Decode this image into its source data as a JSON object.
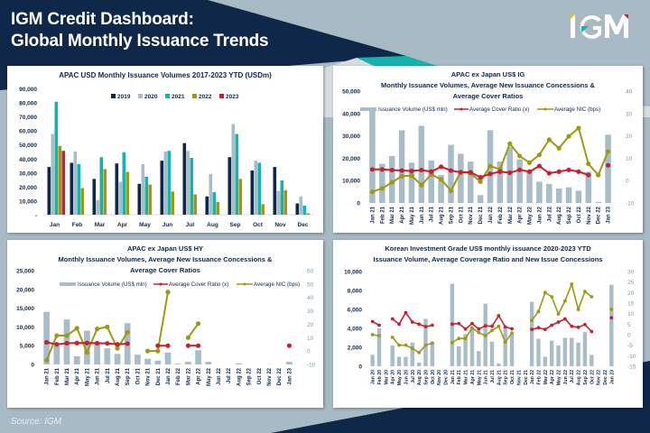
{
  "header": {
    "title_line1": "IGM Credit Dashboard:",
    "title_line2": "Global Monthly Issuance Trends",
    "logo_text": "IGM"
  },
  "footer": {
    "source": "Source: IGM"
  },
  "colors": {
    "navy": "#0f2748",
    "teal": "#16b2ad",
    "slate": "#a7bac5",
    "bar": "#a9bdc8",
    "red": "#c8202f",
    "olive": "#9c9a14"
  },
  "chart_data": [
    {
      "id": "apac-usd",
      "type": "bar",
      "title": "APAC USD Monthly Issuance Volumes 2017-2023 YTD (USDm)",
      "categories": [
        "Jan",
        "Feb",
        "Mar",
        "Apr",
        "May",
        "Jun",
        "Jul",
        "Aug",
        "Sep",
        "Oct",
        "Nov",
        "Dec"
      ],
      "ylim": [
        0,
        90000
      ],
      "yticks": [
        "-",
        "10,000",
        "20,000",
        "30,000",
        "40,000",
        "50,000",
        "60,000",
        "70,000",
        "80,000",
        "90,000"
      ],
      "legend_position": "top",
      "series": [
        {
          "name": "2019",
          "color": "#0f2748",
          "values": [
            34000,
            37000,
            25500,
            36500,
            22000,
            38500,
            51000,
            13000,
            41000,
            31500,
            34000,
            8000
          ]
        },
        {
          "name": "2020",
          "color": "#a9bdc8",
          "values": [
            57500,
            45000,
            10500,
            23500,
            36000,
            45000,
            45500,
            29000,
            64500,
            38500,
            17000,
            13000
          ]
        },
        {
          "name": "2021",
          "color": "#16b2ad",
          "values": [
            80500,
            36000,
            41000,
            44500,
            27000,
            45500,
            40500,
            16000,
            57500,
            37000,
            24500,
            6500
          ]
        },
        {
          "name": "2022",
          "color": "#9c9a14",
          "values": [
            49000,
            19000,
            32500,
            30500,
            21500,
            16500,
            14500,
            9000,
            25500,
            7500,
            17500,
            1000
          ]
        },
        {
          "name": "2023",
          "color": "#c8202f",
          "values": [
            45500,
            null,
            null,
            null,
            null,
            null,
            null,
            null,
            null,
            null,
            null,
            null
          ]
        }
      ]
    },
    {
      "id": "apac-ig",
      "type": "bar+line",
      "title": "APAC ex Japan US$ IG",
      "subtitle1": "Monthly Issuance Volumes, Average New Issuance Concessions &",
      "subtitle2": "Average Cover Ratios",
      "categories": [
        "Jan 21",
        "Feb 21",
        "Mar 21",
        "Apr 21",
        "May 21",
        "Jun 21",
        "Jul 21",
        "Aug 21",
        "Sep 21",
        "Oct 21",
        "Nov 21",
        "Dec 21",
        "Jan 22",
        "Feb 22",
        "Mar 22",
        "Apr 22",
        "May 22",
        "Jun 22",
        "Jul 22",
        "Aug 22",
        "Sep 22",
        "Oct 22",
        "Nov 22",
        "Dec 22",
        "Jan 23"
      ],
      "ylim": [
        0,
        50000
      ],
      "yticks": [
        "0",
        "10,000",
        "20,000",
        "30,000",
        "40,000",
        "50,000"
      ],
      "y2lim": [
        -10,
        40
      ],
      "y2ticks": [
        "-10",
        "0",
        "10",
        "20",
        "30",
        "40"
      ],
      "legend": [
        "Issuance Volume (US$ mln)",
        "Average Cover Ratio (x)",
        "Average NIC (bps)"
      ],
      "bars": [
        41500,
        17500,
        21000,
        32500,
        18000,
        34500,
        19000,
        12500,
        26000,
        22000,
        18500,
        3500,
        32500,
        18500,
        25000,
        19500,
        14500,
        9500,
        8500,
        6500,
        7000,
        5500,
        14000,
        500,
        30500
      ],
      "cover_ratio": [
        5,
        5,
        4.7,
        4.5,
        4.3,
        4.7,
        4,
        6.2,
        4.5,
        3.7,
        3.7,
        1.5,
        3,
        4,
        3.5,
        4.8,
        4,
        6.5,
        3.3,
        4,
        4.8,
        4,
        2.5,
        null,
        6.8
      ],
      "nic": [
        -5,
        -3.5,
        -0.8,
        2,
        2.2,
        -2,
        2.8,
        0.5,
        -4.5,
        3.8,
        3.3,
        -0.5,
        6.5,
        5,
        16.5,
        11,
        8,
        11.5,
        18.3,
        14.5,
        19.8,
        23.5,
        7.5,
        2.5,
        13
      ]
    },
    {
      "id": "apac-hy",
      "type": "bar+line",
      "title": "APAC ex Japan US$ HY",
      "subtitle1": "Monthly Issuance Volumes, Average New Issuance Concessions &",
      "subtitle2": "Average Cover Ratios",
      "categories": [
        "Jan 21",
        "Feb 21",
        "Mar 21",
        "Apr 21",
        "May 21",
        "Jun 21",
        "Jul 21",
        "Aug 21",
        "Sep 21",
        "Oct 21",
        "Nov 21",
        "Dec 21",
        "Jan 22",
        "Feb 22",
        "Mar 22",
        "Apr 22",
        "May 22",
        "Jun 22",
        "Jul 22",
        "Aug 22",
        "Sep 22",
        "Oct 22",
        "Nov 22",
        "Dec 22",
        "Jan 23"
      ],
      "ylim": [
        0,
        25000
      ],
      "yticks": [
        "0",
        "5,000",
        "10,000",
        "15,000",
        "20,000",
        "25,000"
      ],
      "y2lim": [
        -10,
        60
      ],
      "y2ticks": [
        "-10",
        "0",
        "10",
        "20",
        "30",
        "40",
        "50",
        "60"
      ],
      "legend": [
        "Issuance Volume (US$ mln)",
        "Average Cover Ratio (x)",
        "Average NIC (bps)"
      ],
      "bars": [
        14000,
        5000,
        12000,
        2200,
        9000,
        6000,
        4300,
        2800,
        11000,
        2600,
        1500,
        1000,
        3200,
        200,
        700,
        3800,
        700,
        0,
        0,
        300,
        0,
        0,
        50,
        0,
        700
      ],
      "cover_ratio": [
        6.5,
        5,
        5.8,
        6,
        6,
        5.8,
        5.7,
        5,
        5.5,
        null,
        null,
        4,
        4,
        null,
        4,
        4,
        null,
        null,
        null,
        null,
        null,
        null,
        null,
        null,
        4
      ],
      "nic": [
        -7,
        11.5,
        11.5,
        17,
        -1,
        16.5,
        18,
        2,
        14,
        null,
        0,
        0,
        44,
        null,
        10,
        20.5,
        null,
        null,
        null,
        null,
        null,
        null,
        null,
        null,
        null
      ]
    },
    {
      "id": "korean-ig",
      "type": "bar+line",
      "title": "Korean Investment Grade US$ monthly issuance 2020-2023 YTD",
      "subtitle1": "Issuance Volume, Average Coverage Ratio and New Issue Concessions",
      "categories": [
        "Jan 20",
        "Feb 20",
        "Mar 20",
        "Apr 20",
        "May 20",
        "Jun 20",
        "Jul 20",
        "Aug 20",
        "Sep 20",
        "Oct 20",
        "Nov 20",
        "Dec 20",
        "Jan 21",
        "Feb 21",
        "Mar 21",
        "Apr 21",
        "May 21",
        "Jun 21",
        "Jul 21",
        "Aug 21",
        "Sep 21",
        "Oct 21",
        "Nov 21",
        "Dec 21",
        "Jan 22",
        "Feb 22",
        "Mar 22",
        "Apr 22",
        "May 22",
        "Jun 22",
        "Jul 22",
        "Aug 22",
        "Sep 22",
        "Oct 22",
        "Nov 22",
        "Dec 22",
        "Jan 23"
      ],
      "ylim": [
        0,
        10000
      ],
      "yticks": [
        "0",
        "2,000",
        "4,000",
        "6,000",
        "8,000",
        "10,000"
      ],
      "y2lim": [
        -15,
        30
      ],
      "y2ticks": [
        "-15",
        "-10",
        "-5",
        "0",
        "5",
        "10",
        "15",
        "20",
        "25",
        "30"
      ],
      "bars": [
        1200,
        4000,
        0,
        2200,
        1000,
        1000,
        2500,
        400,
        5000,
        2500,
        0,
        0,
        8700,
        2100,
        3400,
        4000,
        1600,
        6600,
        2600,
        300,
        4100,
        3500,
        0,
        0,
        6800,
        2900,
        1000,
        2700,
        2200,
        3000,
        3000,
        2500,
        3600,
        1200,
        0,
        0,
        8600
      ],
      "cover_ratio": [
        6.2,
        4.5,
        null,
        7.5,
        5,
        10.5,
        6,
        5,
        3.8,
        4.5,
        null,
        null,
        5,
        5.3,
        2.7,
        5.3,
        2.7,
        4.2,
        4,
        9,
        3.7,
        2.8,
        null,
        null,
        2.5,
        3.3,
        2.5,
        4.5,
        6,
        7.5,
        4,
        3.5,
        4.8,
        1.5,
        null,
        null,
        8
      ],
      "nic": [
        0,
        -0.5,
        null,
        -1.3,
        -5,
        -5,
        -6.5,
        -8.5,
        -5,
        -4,
        null,
        null,
        -3.8,
        -1.8,
        -1.8,
        3.2,
        1,
        -0.5,
        2,
        4,
        -3.5,
        0.8,
        null,
        null,
        6.8,
        11,
        20,
        18,
        9.8,
        16,
        24,
        12,
        20.5,
        18,
        null,
        null,
        12
      ]
    }
  ]
}
